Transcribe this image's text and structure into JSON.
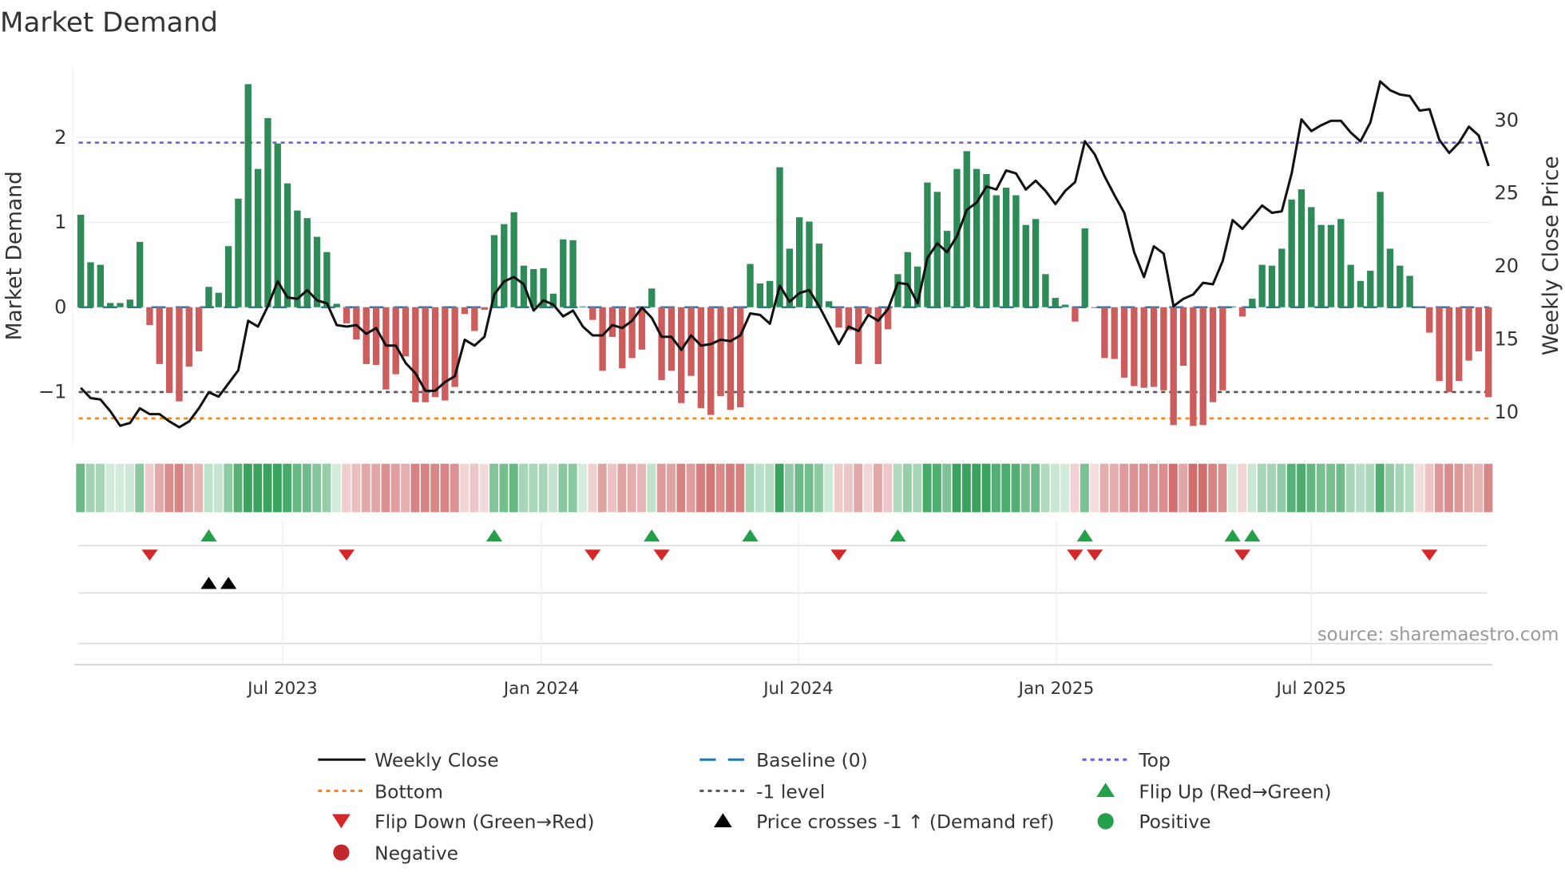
{
  "chart_data": {
    "type": "bar",
    "title": "Market Demand",
    "ylabel": "Market Demand",
    "y2label": "Weekly Close Price",
    "ylim": [
      -1.65,
      2.85
    ],
    "y2lim": [
      7.75,
      38.9
    ],
    "yticks": [
      "2",
      "1",
      "0",
      "−1"
    ],
    "ytick_values": [
      2,
      1,
      0,
      -1
    ],
    "y2ticks": [
      "30",
      "25",
      "20",
      "15",
      "10"
    ],
    "y2tick_values": [
      30,
      25,
      20,
      15,
      10
    ],
    "xticks": [
      "Jul 2023",
      "Jan 2024",
      "Jul 2024",
      "Jan 2025",
      "Jul 2025"
    ],
    "xtick_bar_index": [
      20.5,
      46.8,
      72.9,
      99.1,
      125
    ],
    "reference_lines": {
      "top": 1.94,
      "bottom": -1.31,
      "minus_one": -1,
      "baseline": 0
    },
    "demand": [
      1.09,
      0.53,
      0.5,
      0.05,
      0.05,
      0.09,
      0.77,
      -0.21,
      -0.67,
      -1.01,
      -1.11,
      -0.7,
      -0.52,
      0.24,
      0.17,
      0.72,
      1.28,
      2.63,
      1.63,
      2.23,
      1.93,
      1.46,
      1.14,
      1.05,
      0.83,
      0.65,
      0.04,
      -0.19,
      -0.38,
      -0.67,
      -0.68,
      -0.97,
      -0.79,
      -0.58,
      -1.12,
      -1.12,
      -1.06,
      -1.1,
      -0.94,
      -0.08,
      -0.28,
      -0.03,
      0.85,
      0.98,
      1.12,
      0.49,
      0.45,
      0.46,
      0.16,
      0.8,
      0.79,
      0.01,
      -0.15,
      -0.75,
      -0.35,
      -0.72,
      -0.6,
      -0.5,
      0.22,
      -0.86,
      -0.75,
      -1.13,
      -0.81,
      -1.19,
      -1.27,
      -1.05,
      -1.21,
      -1.18,
      0.51,
      0.28,
      0.31,
      1.65,
      0.69,
      1.06,
      1.01,
      0.75,
      0.07,
      -0.24,
      -0.27,
      -0.67,
      -0.08,
      -0.67,
      -0.26,
      0.39,
      0.65,
      0.48,
      1.47,
      1.36,
      0.9,
      1.63,
      1.84,
      1.63,
      1.57,
      1.32,
      1.41,
      1.32,
      0.97,
      1.04,
      0.39,
      0.11,
      0.03,
      -0.17,
      0.93,
      -0.01,
      -0.6,
      -0.61,
      -0.83,
      -0.93,
      -0.95,
      -0.94,
      -0.98,
      -1.39,
      -0.69,
      -1.4,
      -1.39,
      -1.12,
      -0.98,
      0.01,
      -0.11,
      0.1,
      0.5,
      0.49,
      0.69,
      1.27,
      1.39,
      1.18,
      0.97,
      0.97,
      1.04,
      0.5,
      0.31,
      0.43,
      1.36,
      0.69,
      0.49,
      0.37,
      -0.01,
      -0.3,
      -0.87,
      -1.0,
      -0.87,
      -0.63,
      -0.52,
      -1.06
    ],
    "weekly_close": [
      11.6,
      10.9,
      10.8,
      10.0,
      9.0,
      9.2,
      10.2,
      9.8,
      9.8,
      9.3,
      8.9,
      9.3,
      10.2,
      11.3,
      11.0,
      11.9,
      12.8,
      16.2,
      15.8,
      17.2,
      18.9,
      17.8,
      17.7,
      18.3,
      17.6,
      17.4,
      15.9,
      15.8,
      15.9,
      15.3,
      15.7,
      14.5,
      14.5,
      13.3,
      12.6,
      11.4,
      11.4,
      12.0,
      12.4,
      14.9,
      14.5,
      15.1,
      18.0,
      18.9,
      19.2,
      18.7,
      16.9,
      17.6,
      17.3,
      16.5,
      16.9,
      15.8,
      15.2,
      15.2,
      15.9,
      15.7,
      16.2,
      17.1,
      16.4,
      15.1,
      15.1,
      14.2,
      15.2,
      14.5,
      14.6,
      14.9,
      14.8,
      15.2,
      16.7,
      16.6,
      16.0,
      18.6,
      17.5,
      18.1,
      18.3,
      17.2,
      15.9,
      14.6,
      15.8,
      15.5,
      16.6,
      16.2,
      17.0,
      18.8,
      18.7,
      17.4,
      20.5,
      21.5,
      20.9,
      22.0,
      23.8,
      24.3,
      25.4,
      25.2,
      26.5,
      26.3,
      25.2,
      25.8,
      25.1,
      24.2,
      25.1,
      25.7,
      28.5,
      27.6,
      26.1,
      24.8,
      23.6,
      20.9,
      19.2,
      21.3,
      20.8,
      17.2,
      17.7,
      18.0,
      18.8,
      18.7,
      20.3,
      23.1,
      22.5,
      23.3,
      24.1,
      23.6,
      23.7,
      26.3,
      30.0,
      29.2,
      29.6,
      29.9,
      29.9,
      29.1,
      28.5,
      29.8,
      32.6,
      32.0,
      31.7,
      31.6,
      30.6,
      30.7,
      28.6,
      27.7,
      28.4,
      29.5,
      28.9,
      26.8
    ],
    "flip_up_index": [
      13,
      42,
      58,
      68,
      83,
      102,
      117,
      119
    ],
    "flip_down_index": [
      7,
      27,
      52,
      59,
      77,
      101,
      103,
      118,
      137
    ],
    "price_cross_index": [
      13,
      15
    ],
    "legend": [
      {
        "label": "Weekly Close",
        "kind": "line",
        "color": "#111111"
      },
      {
        "label": "Baseline (0)",
        "kind": "dash",
        "color": "#1f77b4"
      },
      {
        "label": "Top",
        "kind": "dot",
        "color": "#6a5acd"
      },
      {
        "label": "Bottom",
        "kind": "dot",
        "color": "#ff7f0e"
      },
      {
        "label": "-1 level",
        "kind": "dot",
        "color": "#555555"
      },
      {
        "label": "Flip Up (Red→Green)",
        "kind": "tri-up",
        "color": "#22a04a"
      },
      {
        "label": "Flip Down (Green→Red)",
        "kind": "tri-down",
        "color": "#d62728"
      },
      {
        "label": "Price crosses -1 ↑ (Demand ref)",
        "kind": "tri-up",
        "color": "#000000"
      },
      {
        "label": "Positive",
        "kind": "circle",
        "color": "#22a04a"
      },
      {
        "label": "Negative",
        "kind": "circle",
        "color": "#c0282d"
      }
    ],
    "legend_placement": "bottom",
    "colors": {
      "positive": "#2e8b57",
      "negative": "#cd5c5c"
    }
  },
  "source": "source: sharemaestro.com"
}
